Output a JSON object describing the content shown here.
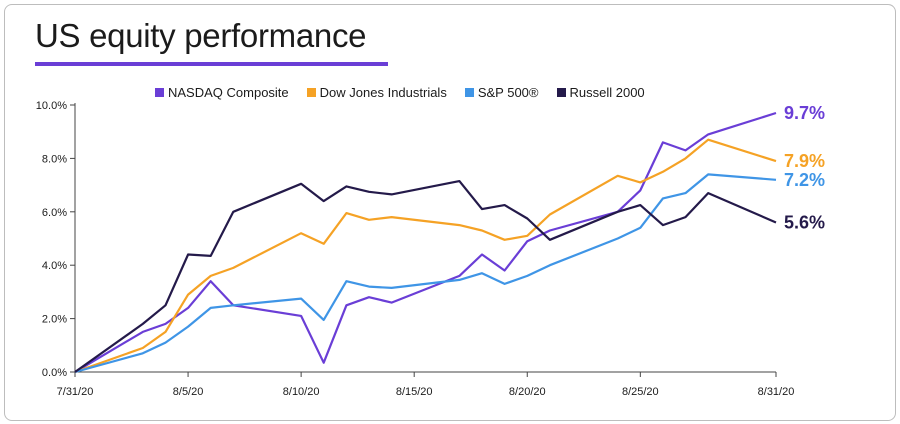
{
  "chart_data": {
    "type": "line",
    "title": "US equity performance",
    "x_labels": [
      "7/31/20",
      "8/5/20",
      "8/10/20",
      "8/15/20",
      "8/20/20",
      "8/25/20",
      "8/31/20"
    ],
    "y_ticks": [
      "0.0%",
      "2.0%",
      "4.0%",
      "6.0%",
      "8.0%",
      "10.0%"
    ],
    "ylim": [
      0,
      10
    ],
    "xlim_days": [
      0,
      31
    ],
    "grid": false,
    "legend_position": "top",
    "series": [
      {
        "name": "NASDAQ Composite",
        "color": "#6a3ed6",
        "end_label": "9.7%",
        "points": [
          [
            0,
            0
          ],
          [
            3,
            1.5
          ],
          [
            4,
            1.8
          ],
          [
            5,
            2.4
          ],
          [
            6,
            3.4
          ],
          [
            7,
            2.5
          ],
          [
            10,
            2.1
          ],
          [
            11,
            0.35
          ],
          [
            12,
            2.5
          ],
          [
            13,
            2.8
          ],
          [
            14,
            2.6
          ],
          [
            17,
            3.6
          ],
          [
            18,
            4.4
          ],
          [
            19,
            3.8
          ],
          [
            20,
            4.9
          ],
          [
            21,
            5.3
          ],
          [
            24,
            6.0
          ],
          [
            25,
            6.8
          ],
          [
            26,
            8.6
          ],
          [
            27,
            8.3
          ],
          [
            28,
            8.9
          ],
          [
            31,
            9.7
          ]
        ]
      },
      {
        "name": "Dow Jones Industrials",
        "color": "#f5a225",
        "end_label": "7.9%",
        "points": [
          [
            0,
            0
          ],
          [
            3,
            0.9
          ],
          [
            4,
            1.5
          ],
          [
            5,
            2.9
          ],
          [
            6,
            3.6
          ],
          [
            7,
            3.9
          ],
          [
            10,
            5.2
          ],
          [
            11,
            4.8
          ],
          [
            12,
            5.95
          ],
          [
            13,
            5.7
          ],
          [
            14,
            5.8
          ],
          [
            17,
            5.5
          ],
          [
            18,
            5.3
          ],
          [
            19,
            4.95
          ],
          [
            20,
            5.1
          ],
          [
            21,
            5.9
          ],
          [
            24,
            7.35
          ],
          [
            25,
            7.1
          ],
          [
            26,
            7.5
          ],
          [
            27,
            8.0
          ],
          [
            28,
            8.7
          ],
          [
            31,
            7.9
          ]
        ]
      },
      {
        "name": "S&P 500®",
        "color": "#3f95e6",
        "end_label": "7.2%",
        "points": [
          [
            0,
            0
          ],
          [
            3,
            0.7
          ],
          [
            4,
            1.1
          ],
          [
            5,
            1.7
          ],
          [
            6,
            2.4
          ],
          [
            7,
            2.5
          ],
          [
            10,
            2.75
          ],
          [
            11,
            1.95
          ],
          [
            12,
            3.4
          ],
          [
            13,
            3.2
          ],
          [
            14,
            3.15
          ],
          [
            17,
            3.45
          ],
          [
            18,
            3.7
          ],
          [
            19,
            3.3
          ],
          [
            20,
            3.6
          ],
          [
            21,
            4.0
          ],
          [
            24,
            5.0
          ],
          [
            25,
            5.4
          ],
          [
            26,
            6.5
          ],
          [
            27,
            6.7
          ],
          [
            28,
            7.4
          ],
          [
            31,
            7.2
          ]
        ]
      },
      {
        "name": "Russell 2000",
        "color": "#241a4a",
        "end_label": "5.6%",
        "points": [
          [
            0,
            0
          ],
          [
            3,
            1.8
          ],
          [
            4,
            2.5
          ],
          [
            5,
            4.4
          ],
          [
            6,
            4.35
          ],
          [
            7,
            6.0
          ],
          [
            10,
            7.05
          ],
          [
            11,
            6.4
          ],
          [
            12,
            6.95
          ],
          [
            13,
            6.75
          ],
          [
            14,
            6.65
          ],
          [
            17,
            7.15
          ],
          [
            18,
            6.1
          ],
          [
            19,
            6.25
          ],
          [
            20,
            5.75
          ],
          [
            21,
            4.95
          ],
          [
            24,
            6.0
          ],
          [
            25,
            6.25
          ],
          [
            26,
            5.5
          ],
          [
            27,
            5.8
          ],
          [
            28,
            6.7
          ],
          [
            31,
            5.6
          ]
        ]
      }
    ]
  }
}
